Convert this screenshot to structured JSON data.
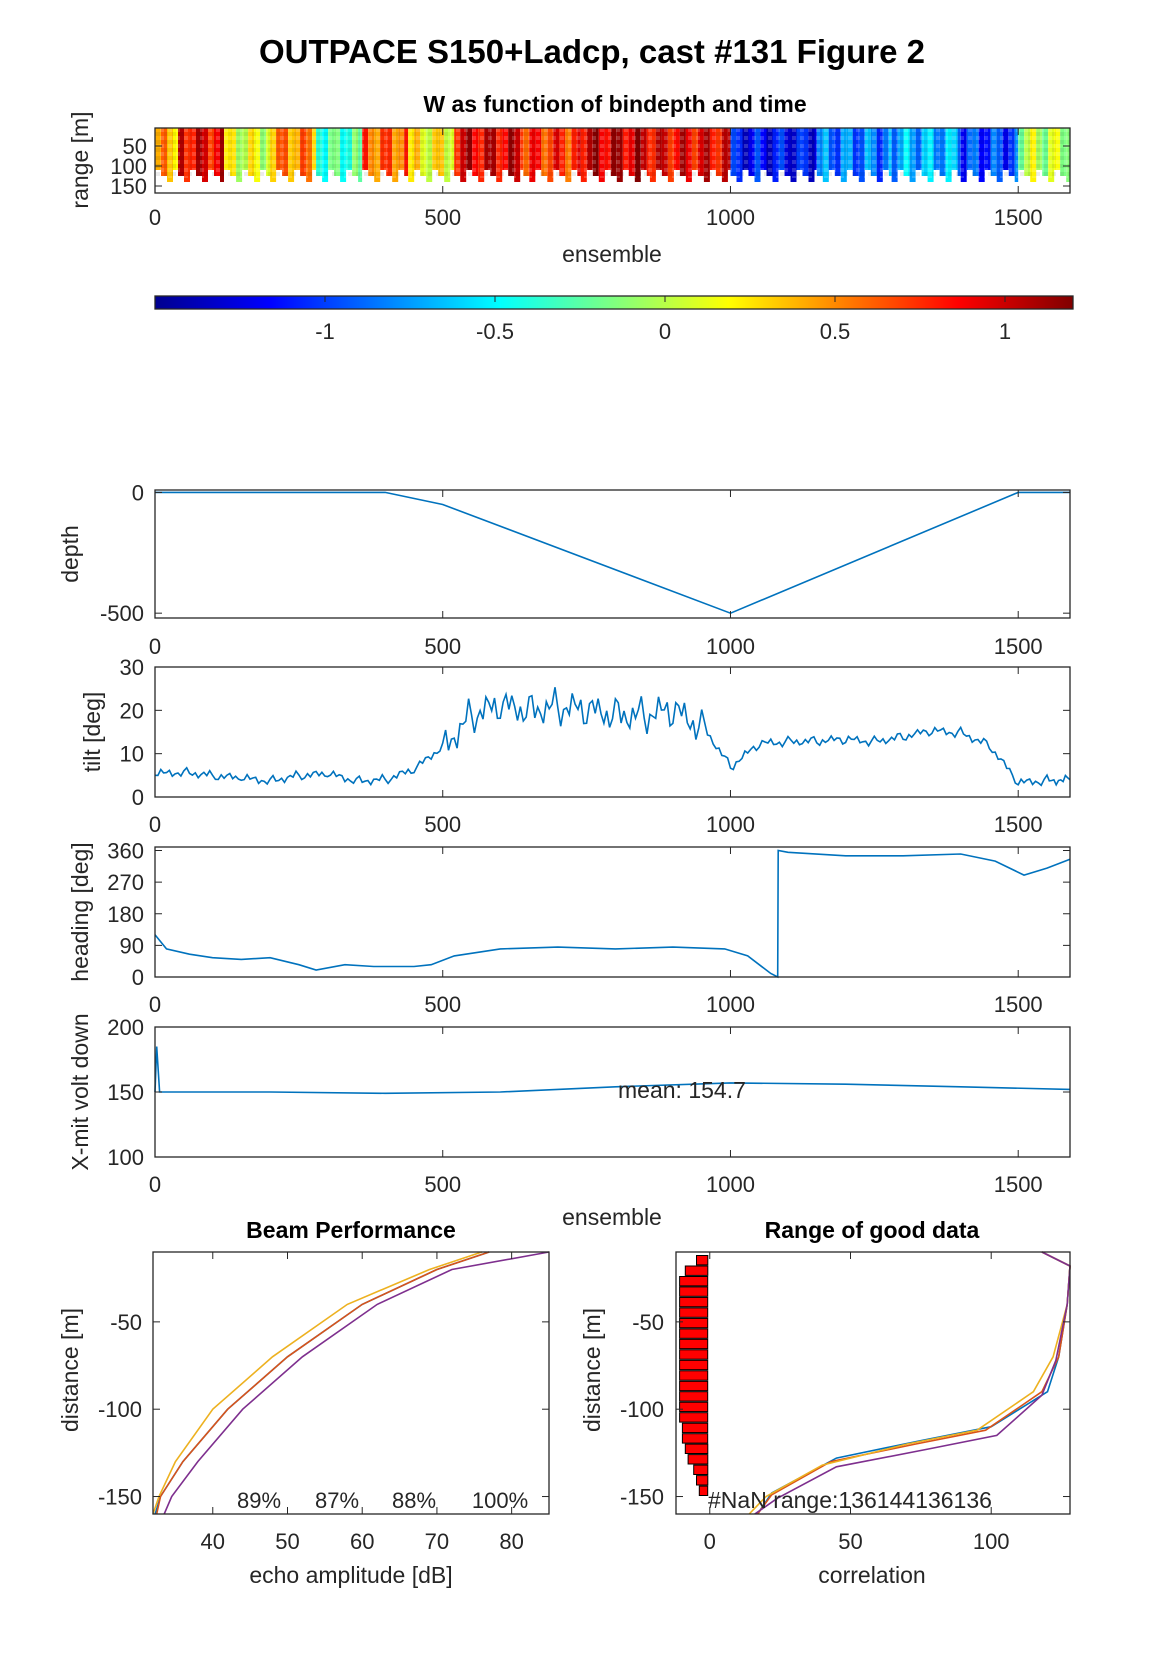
{
  "figure_title": "OUTPACE S150+Ladcp, cast #131 Figure 2",
  "chart_data": [
    {
      "id": "w_image",
      "type": "heatmap",
      "title": "W as function of bindepth and time",
      "xlabel": "ensemble",
      "ylabel": "range [m]",
      "xlim": [
        0,
        1590
      ],
      "xticks": [
        "0",
        "500",
        "1000",
        "1500"
      ],
      "yticks": [
        "50",
        "100",
        "150"
      ],
      "colorbar": {
        "clim": [
          -1.5,
          1.2
        ],
        "ticks": [
          "-1",
          "-0.5",
          "0",
          "0.5",
          "1"
        ]
      },
      "segments": [
        {
          "x": [
            0,
            40
          ],
          "w": 0.4
        },
        {
          "x": [
            40,
            120
          ],
          "w": 0.9
        },
        {
          "x": [
            120,
            200
          ],
          "w": 0.1
        },
        {
          "x": [
            200,
            280
          ],
          "w": 0.5
        },
        {
          "x": [
            280,
            360
          ],
          "w": -0.3
        },
        {
          "x": [
            360,
            440
          ],
          "w": 0.6
        },
        {
          "x": [
            440,
            520
          ],
          "w": 0.2
        },
        {
          "x": [
            520,
            640
          ],
          "w": 0.95
        },
        {
          "x": [
            640,
            740
          ],
          "w": 0.75
        },
        {
          "x": [
            740,
            860
          ],
          "w": 1.0
        },
        {
          "x": [
            860,
            1000
          ],
          "w": 0.9
        },
        {
          "x": [
            1000,
            1150
          ],
          "w": -1.15
        },
        {
          "x": [
            1150,
            1280
          ],
          "w": -0.85
        },
        {
          "x": [
            1280,
            1400
          ],
          "w": -0.7
        },
        {
          "x": [
            1400,
            1500
          ],
          "w": -1.0
        },
        {
          "x": [
            1500,
            1590
          ],
          "w": 0.0
        }
      ]
    },
    {
      "id": "depth",
      "type": "line",
      "ylabel": "depth",
      "xlim": [
        0,
        1590
      ],
      "ylim": [
        -520,
        10
      ],
      "xticks": [
        "0",
        "500",
        "1000",
        "1500"
      ],
      "yticks": [
        "0",
        "-500"
      ],
      "x": [
        0,
        400,
        500,
        1000,
        1500,
        1590
      ],
      "y": [
        0,
        0,
        -50,
        -500,
        0,
        0
      ]
    },
    {
      "id": "tilt",
      "type": "line",
      "ylabel": "tilt [deg]",
      "xlim": [
        0,
        1590
      ],
      "ylim": [
        0,
        30
      ],
      "xticks": [
        "0",
        "500",
        "1000",
        "1500"
      ],
      "yticks": [
        "0",
        "10",
        "20",
        "30"
      ],
      "x": [
        0,
        50,
        100,
        150,
        200,
        250,
        300,
        350,
        400,
        450,
        500,
        550,
        600,
        650,
        700,
        750,
        800,
        850,
        900,
        950,
        1000,
        1050,
        1100,
        1150,
        1200,
        1250,
        1300,
        1350,
        1400,
        1450,
        1500,
        1550,
        1590
      ],
      "y": [
        5,
        6,
        5,
        4,
        4,
        5,
        5,
        4,
        4,
        6,
        12,
        19,
        20,
        21,
        21,
        19,
        20,
        19,
        19,
        17,
        7,
        12,
        13,
        13,
        13,
        13,
        14,
        15,
        15,
        12,
        3,
        4,
        4
      ]
    },
    {
      "id": "heading",
      "type": "line",
      "ylabel": "heading [deg]",
      "xlim": [
        0,
        1590
      ],
      "ylim": [
        0,
        370
      ],
      "xticks": [
        "0",
        "500",
        "1000",
        "1500"
      ],
      "yticks": [
        "0",
        "90",
        "180",
        "270",
        "360"
      ],
      "x": [
        0,
        20,
        60,
        100,
        150,
        200,
        250,
        280,
        330,
        380,
        450,
        480,
        520,
        600,
        700,
        800,
        900,
        990,
        1030,
        1070,
        1082,
        1083,
        1100,
        1200,
        1300,
        1400,
        1460,
        1510,
        1550,
        1590
      ],
      "y": [
        120,
        80,
        65,
        55,
        50,
        55,
        35,
        20,
        35,
        30,
        30,
        35,
        60,
        80,
        85,
        80,
        85,
        80,
        60,
        10,
        0,
        360,
        355,
        345,
        345,
        350,
        330,
        290,
        310,
        335
      ]
    },
    {
      "id": "xmit_volt",
      "type": "line",
      "ylabel": "X-mit volt down",
      "xlabel": "ensemble",
      "annotation": "mean: 154.7",
      "xlim": [
        0,
        1590
      ],
      "ylim": [
        100,
        200
      ],
      "xticks": [
        "0",
        "500",
        "1000",
        "1500"
      ],
      "yticks": [
        "100",
        "150",
        "200"
      ],
      "x": [
        0,
        3,
        8,
        200,
        400,
        600,
        800,
        1000,
        1200,
        1400,
        1590
      ],
      "y": [
        150,
        185,
        150,
        150,
        149,
        150,
        154,
        157,
        156,
        154,
        152
      ]
    },
    {
      "id": "beam_performance",
      "type": "line",
      "title": "Beam Performance",
      "xlabel": "echo amplitude [dB]",
      "ylabel": "distance [m]",
      "xlim": [
        32,
        85
      ],
      "ylim": [
        -160,
        -10
      ],
      "xticks": [
        "40",
        "50",
        "60",
        "70",
        "80"
      ],
      "yticks": [
        "-50",
        "-100",
        "-150"
      ],
      "percent_labels": [
        "89%",
        "87%",
        "88%",
        "100%"
      ],
      "colors": [
        "#0072bd",
        "#d95319",
        "#edb120",
        "#7e2f8e"
      ],
      "series": [
        {
          "x": [
            77,
            70,
            60,
            50,
            42,
            36,
            33,
            32.3
          ],
          "y": [
            -10,
            -20,
            -40,
            -70,
            -100,
            -130,
            -150,
            -160
          ]
        },
        {
          "x": [
            77,
            70,
            60,
            50,
            42,
            36,
            33,
            32.5
          ],
          "y": [
            -10,
            -20,
            -40,
            -70,
            -100,
            -130,
            -150,
            -160
          ]
        },
        {
          "x": [
            76,
            69,
            58,
            48,
            40,
            35,
            32.8,
            32
          ],
          "y": [
            -10,
            -20,
            -40,
            -70,
            -100,
            -130,
            -150,
            -160
          ]
        },
        {
          "x": [
            85,
            72,
            62,
            52,
            44,
            38,
            34.5,
            33.5
          ],
          "y": [
            -10,
            -20,
            -40,
            -70,
            -100,
            -130,
            -150,
            -160
          ]
        }
      ]
    },
    {
      "id": "range_good_data",
      "type": "line",
      "title": "Range of good data",
      "xlabel": "correlation",
      "ylabel": "distance [m]",
      "annotation": "#NaN range:136144136136",
      "xlim": [
        -12,
        128
      ],
      "ylim": [
        -160,
        -10
      ],
      "xticks": [
        "0",
        "50",
        "100"
      ],
      "yticks": [
        "-50",
        "-100",
        "-150"
      ],
      "nan_bars": [
        4,
        8,
        10,
        10,
        10,
        10,
        10,
        10,
        10,
        10,
        10,
        10,
        10,
        10,
        10,
        10,
        9,
        9,
        8,
        7,
        5,
        4,
        3
      ],
      "colors": [
        "#0072bd",
        "#d95319",
        "#edb120",
        "#7e2f8e"
      ],
      "series": [
        {
          "x": [
            118,
            128,
            127,
            124,
            120,
            100,
            75,
            45,
            22,
            17
          ],
          "y": [
            -10,
            -18,
            -40,
            -70,
            -90,
            -110,
            -118,
            -128,
            -148,
            -160
          ]
        },
        {
          "x": [
            118,
            128,
            127,
            124,
            118,
            98,
            73,
            43,
            22,
            17
          ],
          "y": [
            -10,
            -18,
            -40,
            -70,
            -90,
            -112,
            -120,
            -130,
            -149,
            -160
          ]
        },
        {
          "x": [
            118,
            128,
            127,
            122,
            115,
            95,
            70,
            40,
            20,
            14
          ],
          "y": [
            -10,
            -18,
            -40,
            -70,
            -90,
            -112,
            -120,
            -132,
            -150,
            -160
          ]
        },
        {
          "x": [
            118,
            128,
            127,
            123,
            118,
            102,
            77,
            45,
            24,
            16
          ],
          "y": [
            -10,
            -18,
            -40,
            -72,
            -92,
            -115,
            -123,
            -133,
            -151,
            -160
          ]
        }
      ]
    }
  ]
}
